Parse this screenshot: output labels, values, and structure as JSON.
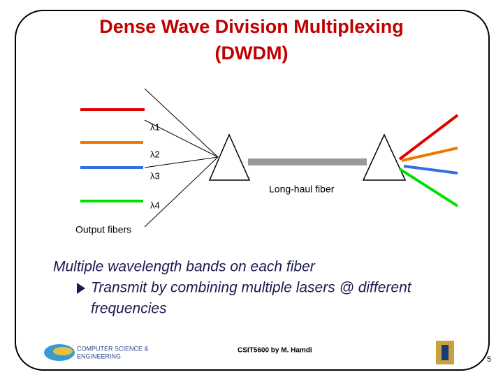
{
  "title": {
    "line1": "Dense Wave Division Multiplexing",
    "line2": "(DWDM)"
  },
  "diagram": {
    "wavelengths": [
      "λ1",
      "λ2",
      "λ3",
      "λ4"
    ],
    "fiber_label": "Long-haul fiber",
    "output_label": "Output fibers"
  },
  "bullets": {
    "main": "Multiple wavelength bands on each fiber",
    "sub_line1": "Transmit by combining multiple lasers @ different",
    "sub_line2": "frequencies"
  },
  "footer": {
    "logo_line1": "COMPUTER SCIENCE &",
    "logo_line2": "ENGINEERING",
    "credit": "CSIT5600 by M. Hamdi",
    "page": "5"
  }
}
